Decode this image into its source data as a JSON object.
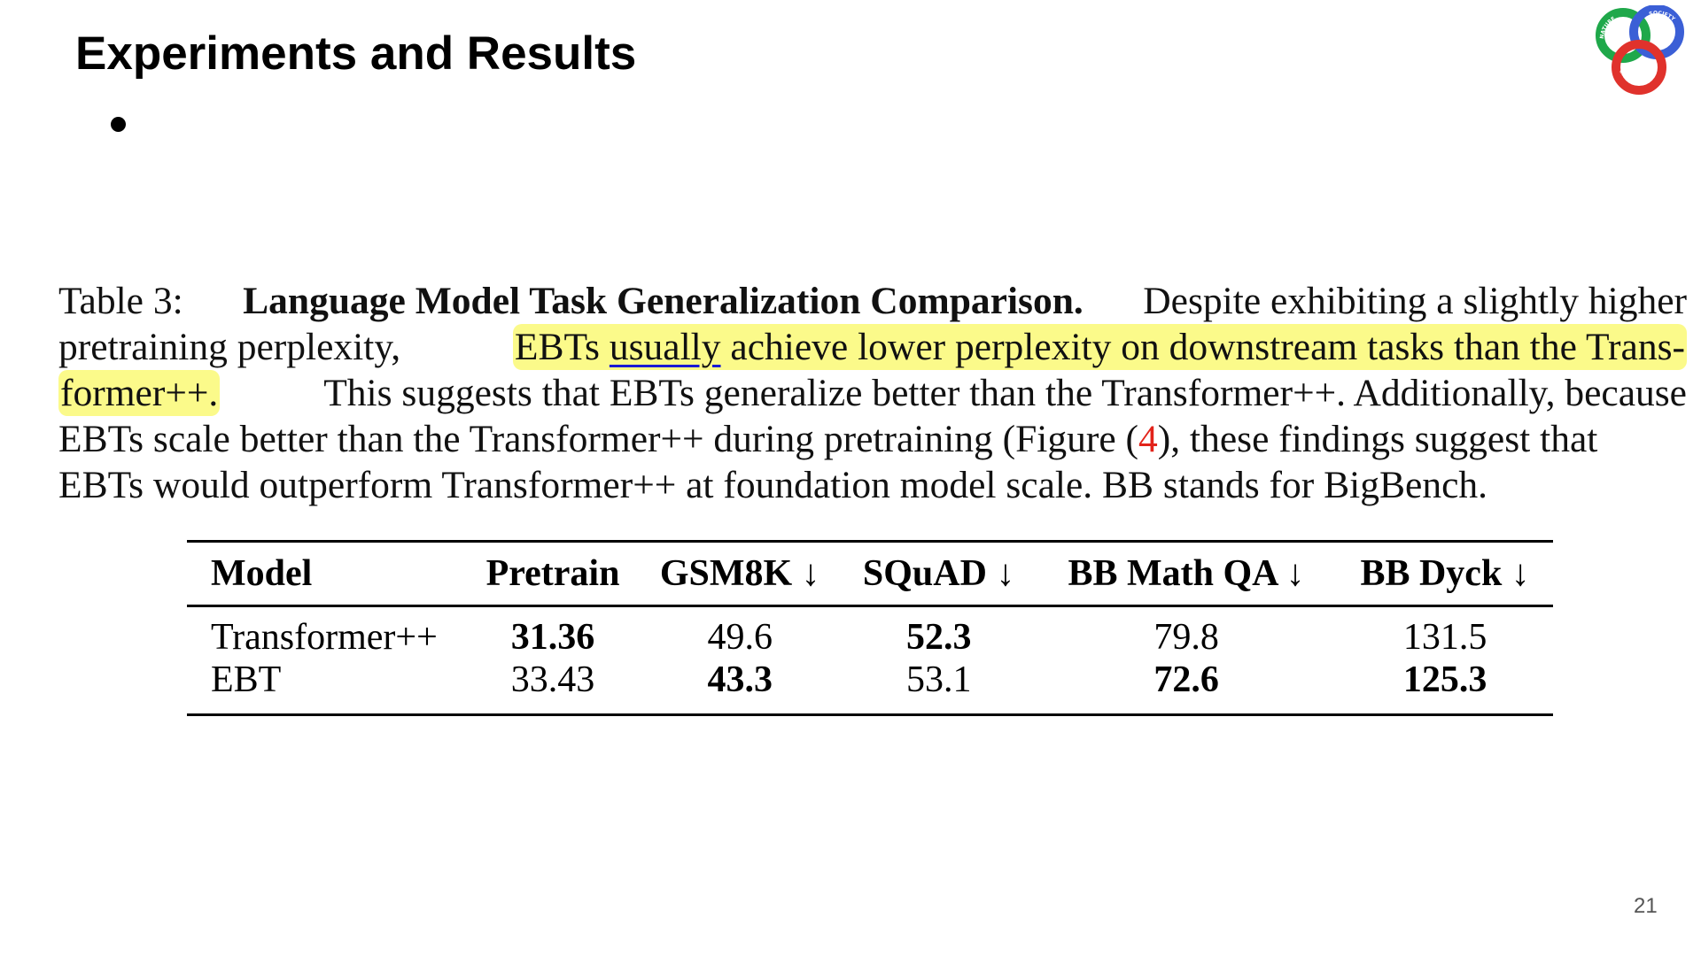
{
  "slide": {
    "title": "Experiments and Results",
    "page_number": "21"
  },
  "logo": {
    "top_text": "NATURE",
    "right_text": "SOCIETY",
    "bottom_text": "COMPUTATION",
    "colors": {
      "green": "#1fa84a",
      "blue": "#3b5fd6",
      "red": "#e0322c"
    }
  },
  "caption": {
    "table_label": "Table 3:",
    "bold_title": "Language Model Task Generalization Comparison.",
    "line1_rest": "Despite exhibiting a slightly higher",
    "line2_a": "pretraining perplexity,",
    "hl_a": "EBTs",
    "hl_underlined": "usually",
    "hl_b": "achieve lower perplexity on downstream tasks than the Trans-",
    "hl_c": "former++.",
    "line3_rest": "This suggests that EBTs generalize better than the Transformer++. Additionally, because",
    "line4_a": "EBTs scale better than the Transformer++ during pretraining (Figure",
    "figure_ref": "4",
    "line4_b": "), these findings suggest that",
    "line5": "EBTs would outperform Transformer++ at foundation model scale. BB stands for BigBench.",
    "colors": {
      "highlight": "#fbfa8a",
      "underline": "#1a1ad4",
      "reference": "#e2231a"
    }
  },
  "table": {
    "headers": [
      "Model",
      "Pretrain",
      "GSM8K ↓",
      "SQuAD ↓",
      "BB Math QA ↓",
      "BB Dyck ↓"
    ],
    "rows": [
      {
        "model": "Transformer++",
        "pretrain": "31.36",
        "gsm8k": "49.6",
        "squad": "52.3",
        "bb_math_qa": "79.8",
        "bb_dyck": "131.5",
        "bold": {
          "pretrain": true,
          "gsm8k": false,
          "squad": true,
          "bb_math_qa": false,
          "bb_dyck": false
        }
      },
      {
        "model": "EBT",
        "pretrain": "33.43",
        "gsm8k": "43.3",
        "squad": "53.1",
        "bb_math_qa": "72.6",
        "bb_dyck": "125.3",
        "bold": {
          "pretrain": false,
          "gsm8k": true,
          "squad": false,
          "bb_math_qa": true,
          "bb_dyck": true
        }
      }
    ]
  }
}
